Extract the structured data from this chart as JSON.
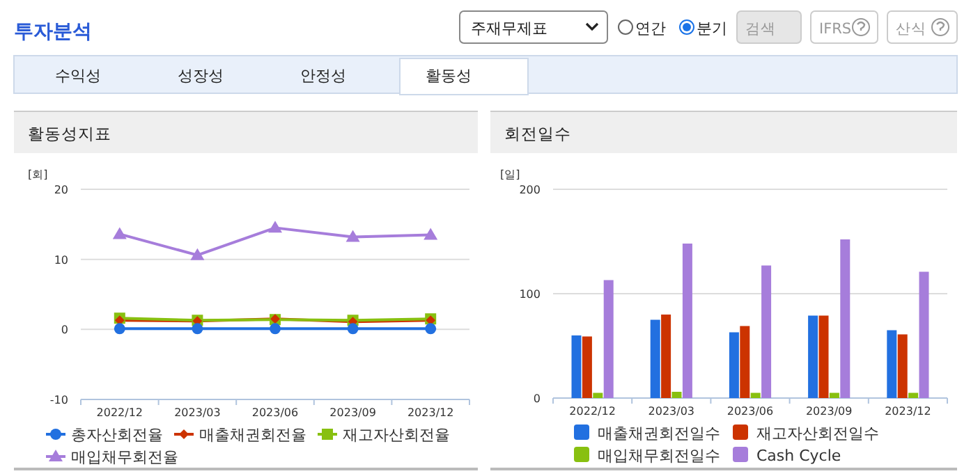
{
  "chart_data": [
    {
      "type": "other",
      "title": "투자분석",
      "annotations": [
        "주재무제표",
        "연간",
        "분기",
        "검색",
        "IFRS",
        "산식",
        "수익성",
        "성장성",
        "안정성",
        "활동성"
      ]
    },
    {
      "type": "line",
      "title": "활동성지표",
      "ylabel": "[회]",
      "categories": [
        "2022/12",
        "2023/03",
        "2023/06",
        "2023/09",
        "2023/12"
      ],
      "ylim": [
        -10,
        20
      ],
      "yticks": [
        -10,
        0,
        10,
        20
      ],
      "grid": "y",
      "legend": "bottom",
      "series": [
        {
          "name": "총자산회전율",
          "color": "#2270e0",
          "marker": "circle",
          "values": [
            0.1,
            0.1,
            0.1,
            0.1,
            0.1
          ]
        },
        {
          "name": "매출채권회전율",
          "color": "#cc3300",
          "marker": "diamond",
          "values": [
            1.3,
            1.2,
            1.5,
            1.1,
            1.3
          ]
        },
        {
          "name": "재고자산회전율",
          "color": "#88c010",
          "marker": "square",
          "values": [
            1.6,
            1.3,
            1.4,
            1.3,
            1.5
          ]
        },
        {
          "name": "매입채무회전율",
          "color": "#a67ddb",
          "marker": "triangle",
          "values": [
            13.6,
            10.6,
            14.5,
            13.2,
            13.5
          ]
        }
      ]
    },
    {
      "type": "bar",
      "title": "회전일수",
      "ylabel": "[일]",
      "categories": [
        "2022/12",
        "2023/03",
        "2023/06",
        "2023/09",
        "2023/12"
      ],
      "ylim": [
        0,
        200
      ],
      "yticks": [
        0,
        100,
        200
      ],
      "grid": "y",
      "legend": "bottom",
      "series": [
        {
          "name": "매출채권회전일수",
          "color": "#2270e0",
          "values": [
            60,
            75,
            63,
            79,
            65
          ]
        },
        {
          "name": "재고자산회전일수",
          "color": "#cc3300",
          "values": [
            59,
            80,
            69,
            79,
            61
          ]
        },
        {
          "name": "매입채무회전일수",
          "color": "#88c010",
          "values": [
            5,
            6,
            5,
            5,
            5
          ]
        },
        {
          "name": "Cash Cycle",
          "color": "#a67ddb",
          "values": [
            113,
            148,
            127,
            152,
            121
          ]
        }
      ]
    }
  ]
}
